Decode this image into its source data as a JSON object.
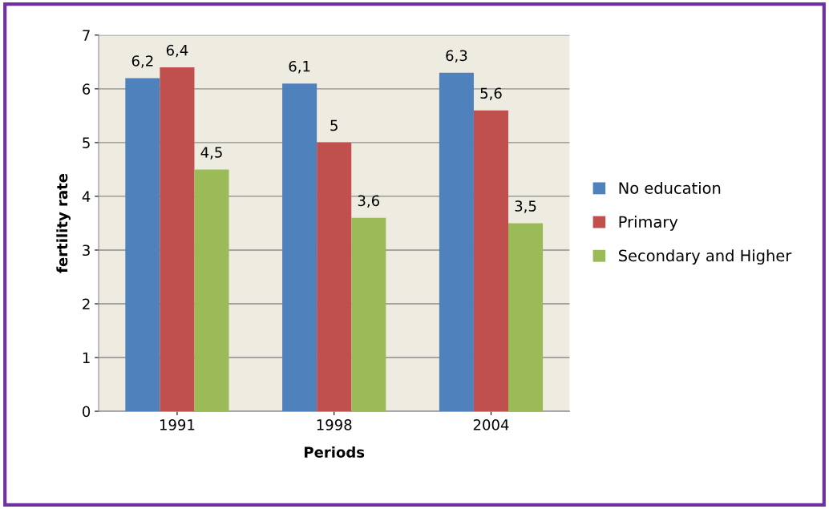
{
  "chart_data": {
    "type": "bar",
    "xlabel": "Periods",
    "ylabel": "fertility rate",
    "categories": [
      "1991",
      "1998",
      "2004"
    ],
    "series": [
      {
        "name": "No education",
        "color": "#4f81bd",
        "values": [
          6.2,
          6.1,
          6.3
        ],
        "value_labels": [
          "6,2",
          "6,1",
          "6,3"
        ]
      },
      {
        "name": "Primary",
        "color": "#c0504d",
        "values": [
          6.4,
          5,
          5.6
        ],
        "value_labels": [
          "6,4",
          "5",
          "5,6"
        ]
      },
      {
        "name": "Secondary and Higher",
        "color": "#9bbb59",
        "values": [
          4.5,
          3.6,
          3.5
        ],
        "value_labels": [
          "4,5",
          "3,6",
          "3,5"
        ]
      }
    ],
    "ylim": [
      0,
      7
    ],
    "yticks": [
      0,
      1,
      2,
      3,
      4,
      5,
      6,
      7
    ],
    "grid": "y",
    "legend": "right"
  }
}
